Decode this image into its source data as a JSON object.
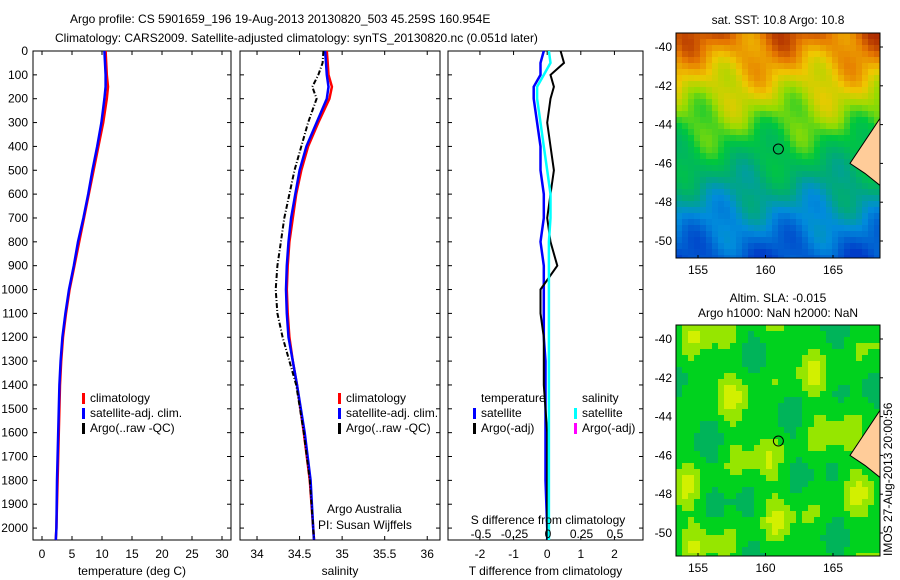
{
  "title": {
    "line1": "Argo profile: CS 5901659_196 19-Aug-2013 20130820_503 45.259S 160.954E",
    "line2": "Climatology: CARS2009. Satellite-adjusted climatology: synTS_20130820.nc (0.051d later)"
  },
  "colors": {
    "climatology": "#ff0000",
    "satellite": "#0000ff",
    "argo": "#000000",
    "sal_satellite": "#00ffff",
    "sal_argo": "#ff00ff"
  },
  "chart_data": [
    {
      "type": "line",
      "name": "temperature",
      "xlabel": "temperature (deg C)",
      "ylabel": "depth",
      "xlim": [
        -1.5,
        31.5
      ],
      "ylim": [
        2050,
        0
      ],
      "xticks": [
        0,
        5,
        10,
        15,
        20,
        25,
        30
      ],
      "yticks": [
        0,
        100,
        200,
        300,
        400,
        500,
        600,
        700,
        800,
        900,
        1000,
        1100,
        1200,
        1300,
        1400,
        1500,
        1600,
        1700,
        1800,
        1900,
        2000
      ],
      "depth": [
        0,
        50,
        100,
        150,
        200,
        300,
        400,
        500,
        600,
        700,
        800,
        900,
        1000,
        1100,
        1200,
        1300,
        1400,
        1600,
        1800,
        2000,
        2050
      ],
      "series": [
        {
          "name": "climatology",
          "color": "#ff0000",
          "values": [
            10.6,
            10.7,
            10.8,
            11.0,
            10.8,
            10.2,
            9.4,
            8.6,
            7.8,
            7.0,
            6.2,
            5.4,
            4.6,
            4.0,
            3.5,
            3.2,
            3.0,
            2.8,
            2.6,
            2.4,
            2.3
          ]
        },
        {
          "name": "satellite-adj. clim.",
          "color": "#0000ff",
          "values": [
            10.4,
            10.5,
            10.6,
            10.6,
            10.4,
            9.9,
            9.2,
            8.4,
            7.7,
            6.9,
            6.0,
            5.3,
            4.5,
            3.9,
            3.4,
            3.1,
            2.9,
            2.7,
            2.5,
            2.4,
            2.3
          ]
        }
      ],
      "legend": [
        "climatology",
        "satellite-adj. clim.",
        "Argo(..raw -QC)"
      ]
    },
    {
      "type": "line",
      "name": "salinity",
      "xlabel": "salinity",
      "xlim": [
        33.8,
        36.15
      ],
      "xticks": [
        34,
        34.5,
        35,
        35.5,
        36
      ],
      "depth": [
        0,
        50,
        100,
        150,
        200,
        300,
        400,
        500,
        600,
        700,
        800,
        900,
        1000,
        1100,
        1200,
        1300,
        1400,
        1600,
        1800,
        2000,
        2050
      ],
      "series": [
        {
          "name": "climatology",
          "color": "#ff0000",
          "values": [
            34.82,
            34.83,
            34.84,
            34.88,
            34.85,
            34.72,
            34.6,
            34.52,
            34.46,
            34.42,
            34.38,
            34.36,
            34.35,
            34.36,
            34.38,
            34.42,
            34.47,
            34.55,
            34.62,
            34.66,
            34.67
          ]
        },
        {
          "name": "satellite-adj. clim.",
          "color": "#0000ff",
          "values": [
            34.8,
            34.81,
            34.82,
            34.84,
            34.82,
            34.7,
            34.58,
            34.5,
            34.45,
            34.4,
            34.37,
            34.35,
            34.34,
            34.35,
            34.37,
            34.42,
            34.47,
            34.56,
            34.63,
            34.66,
            34.67
          ]
        },
        {
          "name": "Argo(..raw -QC)",
          "color": "#000000",
          "values": [
            34.78,
            34.77,
            34.72,
            34.65,
            34.7,
            34.6,
            34.52,
            34.44,
            34.38,
            34.32,
            34.28,
            34.24,
            34.22,
            34.24,
            34.3,
            34.38,
            34.46,
            34.55,
            34.62,
            34.66,
            34.67
          ]
        }
      ],
      "legend": [
        "climatology",
        "satellite-adj. clim.",
        "Argo(..raw -QC)"
      ],
      "annotation": [
        "Argo Australia",
        "PI: Susan Wijffels"
      ]
    },
    {
      "type": "line",
      "name": "difference",
      "xlabel": "T difference from climatology",
      "x2label": "S difference from climatology",
      "xlim": [
        -2.95,
        2.85
      ],
      "xticks": [
        -2,
        -1,
        0,
        1,
        2
      ],
      "x2ticks": [
        "-0.5",
        "-0.25",
        "0",
        "0.25",
        "0.5"
      ],
      "depth": [
        0,
        50,
        100,
        150,
        200,
        300,
        400,
        500,
        600,
        700,
        800,
        900,
        1000,
        1100,
        1200,
        1300,
        1400,
        1600,
        1800,
        2000,
        2050
      ],
      "series": [
        {
          "name": "temperature satellite",
          "color": "#0000ff",
          "values": [
            -0.1,
            -0.2,
            -0.2,
            -0.4,
            -0.4,
            -0.3,
            -0.2,
            -0.2,
            -0.1,
            -0.1,
            -0.2,
            -0.1,
            -0.1,
            -0.1,
            -0.1,
            -0.05,
            -0.05,
            -0.05,
            -0.05,
            0,
            0
          ]
        },
        {
          "name": "temperature Argo(-adj)",
          "color": "#000000",
          "values": [
            0.4,
            0.5,
            0.1,
            0.2,
            0.1,
            0,
            0.1,
            0.2,
            0.1,
            0.0,
            0.1,
            0.3,
            -0.2,
            -0.2,
            -0.1,
            -0.1,
            -0.1,
            0,
            0,
            0,
            0
          ]
        },
        {
          "name": "salinity satellite",
          "color": "#00ffff",
          "values": [
            0.05,
            0.1,
            -0.1,
            -0.3,
            -0.3,
            -0.2,
            -0.1,
            0,
            0.1,
            0.1,
            0.05,
            0.05,
            0.05,
            0.05,
            0.05,
            0.05,
            0.05,
            0.05,
            0.05,
            0.05,
            0.05
          ]
        }
      ],
      "legend": {
        "temperature": "temperature",
        "salinity": "salinity",
        "items": [
          "satellite",
          "Argo(-adj)",
          "satellite",
          "Argo(-adj)"
        ]
      }
    }
  ],
  "maps": [
    {
      "title": "sat. SST: 10.8 Argo: 10.8",
      "lon_ticks": [
        "155",
        "160",
        "165"
      ],
      "lat_ticks": [
        "-40",
        "-42",
        "-44",
        "-46",
        "-48",
        "-50"
      ],
      "marker": {
        "lon": 160.954,
        "lat": -45.259
      }
    },
    {
      "title1": "Altim. SLA: -0.015",
      "title2": "Argo h1000: NaN h2000: NaN",
      "lon_ticks": [
        "155",
        "160",
        "165"
      ],
      "lat_ticks": [
        "-40",
        "-42",
        "-44",
        "-46",
        "-48",
        "-50"
      ],
      "marker": {
        "lon": 160.954,
        "lat": -45.259
      }
    }
  ],
  "credit": "IMOS 27-Aug-2013 20:00:56"
}
